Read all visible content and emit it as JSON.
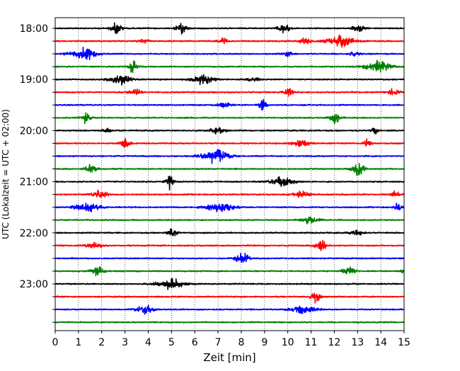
{
  "chart_data": {
    "type": "line",
    "title": "",
    "xlabel": "Zeit  [min]",
    "ylabel": "UTC (Lokalzeit = UTC + 02:00)",
    "xlim": [
      0,
      15
    ],
    "x_ticks": [
      0,
      1,
      2,
      3,
      4,
      5,
      6,
      7,
      8,
      9,
      10,
      11,
      12,
      13,
      14,
      15
    ],
    "y_tick_labels": [
      "18:00",
      "19:00",
      "20:00",
      "21:00",
      "22:00",
      "23:00"
    ],
    "trace_interval_min": 15,
    "grid": "vertical-dotted",
    "series_colors": [
      "#000000",
      "#ff0000",
      "#0000ff",
      "#008000"
    ],
    "traces": [
      {
        "start": "18:00",
        "color": "#000000",
        "bursts": [
          {
            "t": 2.6,
            "amp": 1.0,
            "w": 0.35
          },
          {
            "t": 5.4,
            "amp": 0.9,
            "w": 0.35
          },
          {
            "t": 9.8,
            "amp": 0.7,
            "w": 0.4
          },
          {
            "t": 13.0,
            "amp": 0.6,
            "w": 0.4
          }
        ]
      },
      {
        "start": "18:15",
        "color": "#ff0000",
        "bursts": [
          {
            "t": 3.8,
            "amp": 0.4,
            "w": 0.3
          },
          {
            "t": 7.2,
            "amp": 0.5,
            "w": 0.3
          },
          {
            "t": 10.7,
            "amp": 0.5,
            "w": 0.4
          },
          {
            "t": 12.2,
            "amp": 1.0,
            "w": 0.9
          }
        ]
      },
      {
        "start": "18:30",
        "color": "#0000ff",
        "bursts": [
          {
            "t": 1.2,
            "amp": 1.2,
            "w": 0.8
          },
          {
            "t": 10.0,
            "amp": 0.5,
            "w": 0.3
          },
          {
            "t": 12.8,
            "amp": 0.4,
            "w": 0.4
          }
        ]
      },
      {
        "start": "18:45",
        "color": "#008000",
        "bursts": [
          {
            "t": 3.3,
            "amp": 1.0,
            "w": 0.3
          },
          {
            "t": 13.8,
            "amp": 1.0,
            "w": 0.8
          }
        ]
      },
      {
        "start": "19:00",
        "color": "#000000",
        "bursts": [
          {
            "t": 2.7,
            "amp": 0.9,
            "w": 0.7
          },
          {
            "t": 6.3,
            "amp": 0.8,
            "w": 0.7
          },
          {
            "t": 8.5,
            "amp": 0.4,
            "w": 0.4
          }
        ]
      },
      {
        "start": "19:15",
        "color": "#ff0000",
        "bursts": [
          {
            "t": 3.4,
            "amp": 0.6,
            "w": 0.4
          },
          {
            "t": 10.0,
            "amp": 0.7,
            "w": 0.3
          },
          {
            "t": 14.5,
            "amp": 0.5,
            "w": 0.4
          }
        ]
      },
      {
        "start": "19:30",
        "color": "#0000ff",
        "bursts": [
          {
            "t": 7.2,
            "amp": 0.4,
            "w": 0.5
          },
          {
            "t": 8.9,
            "amp": 1.0,
            "w": 0.25
          }
        ]
      },
      {
        "start": "19:45",
        "color": "#008000",
        "bursts": [
          {
            "t": 1.3,
            "amp": 0.9,
            "w": 0.35
          },
          {
            "t": 12.0,
            "amp": 1.0,
            "w": 0.35
          }
        ]
      },
      {
        "start": "20:00",
        "color": "#000000",
        "bursts": [
          {
            "t": 2.2,
            "amp": 0.4,
            "w": 0.3
          },
          {
            "t": 6.9,
            "amp": 0.6,
            "w": 0.5
          },
          {
            "t": 13.7,
            "amp": 0.8,
            "w": 0.2
          }
        ]
      },
      {
        "start": "20:15",
        "color": "#ff0000",
        "bursts": [
          {
            "t": 3.0,
            "amp": 1.0,
            "w": 0.3
          },
          {
            "t": 10.5,
            "amp": 0.6,
            "w": 0.6
          },
          {
            "t": 13.4,
            "amp": 0.8,
            "w": 0.25
          }
        ]
      },
      {
        "start": "20:30",
        "color": "#0000ff",
        "bursts": [
          {
            "t": 6.8,
            "amp": 1.2,
            "w": 0.9
          }
        ]
      },
      {
        "start": "20:45",
        "color": "#008000",
        "bursts": [
          {
            "t": 1.5,
            "amp": 0.7,
            "w": 0.4
          },
          {
            "t": 13.0,
            "amp": 1.1,
            "w": 0.4
          }
        ]
      },
      {
        "start": "21:00",
        "color": "#000000",
        "bursts": [
          {
            "t": 4.9,
            "amp": 1.3,
            "w": 0.25
          },
          {
            "t": 9.7,
            "amp": 0.8,
            "w": 0.8
          }
        ]
      },
      {
        "start": "21:15",
        "color": "#ff0000",
        "bursts": [
          {
            "t": 1.9,
            "amp": 0.6,
            "w": 0.5
          },
          {
            "t": 10.5,
            "amp": 0.6,
            "w": 0.5
          },
          {
            "t": 14.6,
            "amp": 0.5,
            "w": 0.3
          }
        ]
      },
      {
        "start": "21:30",
        "color": "#0000ff",
        "bursts": [
          {
            "t": 1.3,
            "amp": 0.8,
            "w": 0.8
          },
          {
            "t": 7.0,
            "amp": 0.9,
            "w": 0.9
          },
          {
            "t": 14.7,
            "amp": 0.8,
            "w": 0.25
          }
        ]
      },
      {
        "start": "21:45",
        "color": "#008000",
        "bursts": [
          {
            "t": 10.9,
            "amp": 0.6,
            "w": 0.6
          }
        ]
      },
      {
        "start": "22:00",
        "color": "#000000",
        "bursts": [
          {
            "t": 5.0,
            "amp": 0.6,
            "w": 0.4
          },
          {
            "t": 12.9,
            "amp": 0.4,
            "w": 0.5
          }
        ]
      },
      {
        "start": "22:15",
        "color": "#ff0000",
        "bursts": [
          {
            "t": 1.6,
            "amp": 0.5,
            "w": 0.5
          },
          {
            "t": 11.4,
            "amp": 1.0,
            "w": 0.35
          }
        ]
      },
      {
        "start": "22:30",
        "color": "#0000ff",
        "bursts": [
          {
            "t": 8.0,
            "amp": 1.1,
            "w": 0.4
          }
        ]
      },
      {
        "start": "22:45",
        "color": "#008000",
        "bursts": [
          {
            "t": 1.8,
            "amp": 0.9,
            "w": 0.4
          },
          {
            "t": 12.6,
            "amp": 1.0,
            "w": 0.4
          },
          {
            "t": 14.9,
            "amp": 0.5,
            "w": 0.1
          }
        ]
      },
      {
        "start": "23:00",
        "color": "#000000",
        "bursts": [
          {
            "t": 4.9,
            "amp": 0.9,
            "w": 0.9
          }
        ]
      },
      {
        "start": "23:15",
        "color": "#ff0000",
        "bursts": [
          {
            "t": 11.2,
            "amp": 1.1,
            "w": 0.3
          }
        ]
      },
      {
        "start": "23:30",
        "color": "#0000ff",
        "bursts": [
          {
            "t": 3.8,
            "amp": 0.9,
            "w": 0.5
          },
          {
            "t": 10.6,
            "amp": 0.7,
            "w": 0.8
          }
        ]
      },
      {
        "start": "23:45",
        "color": "#008000",
        "bursts": []
      }
    ]
  }
}
